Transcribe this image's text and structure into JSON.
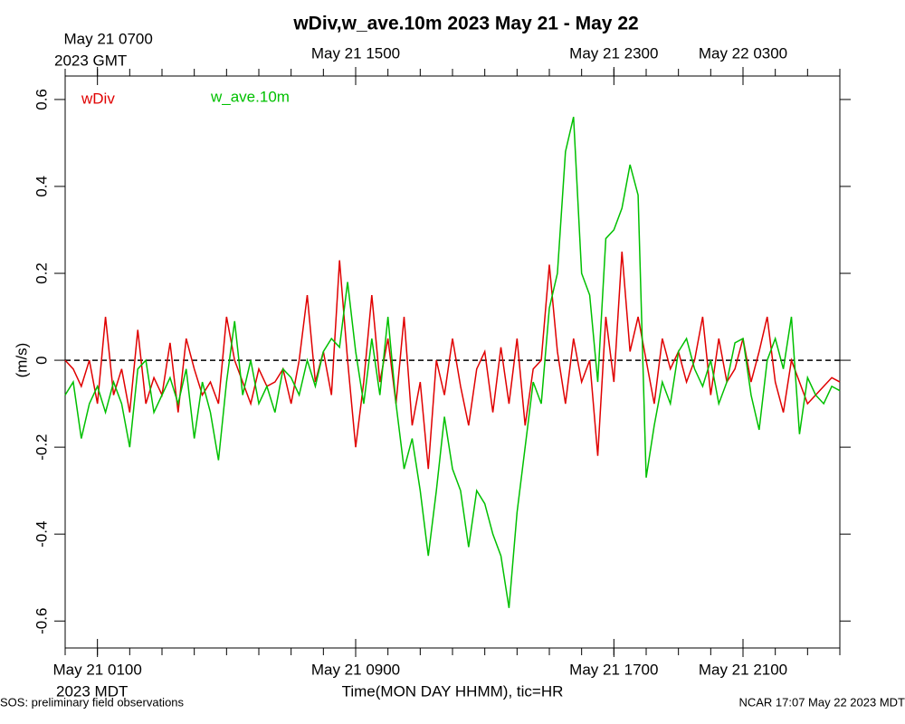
{
  "chart_data": {
    "type": "line",
    "title": "wDiv,w_ave.10m 2023 May 21 - May 22",
    "y_label": "(m/s)",
    "x_label": "Time(MON DAY HHMM), tic=HR",
    "bottom_zone": "2023 MDT",
    "top_zone": "2023 GMT",
    "footer_left": "SOS: preliminary field observations",
    "footer_right": "NCAR 17:07 May 22 2023 MDT",
    "xlim": [
      0,
      1440
    ],
    "ylim": [
      -0.662,
      0.654
    ],
    "yticks": [
      -0.6,
      -0.4,
      -0.2,
      0,
      0.2,
      0.4,
      0.6
    ],
    "xticks": [
      {
        "value": 60,
        "label": "May 21 0100"
      },
      {
        "value": 540,
        "label": "May 21 0900"
      },
      {
        "value": 1020,
        "label": "May 21 1700"
      },
      {
        "value": 1260,
        "label": "May 21 2100"
      }
    ],
    "top_xticks": [
      {
        "value": 60,
        "label": "May 21 0700"
      },
      {
        "value": 540,
        "label": "May 21 1500"
      },
      {
        "value": 1020,
        "label": "May 21 2300"
      },
      {
        "value": 1260,
        "label": "May 22 0300"
      }
    ],
    "xminorticks": [
      0,
      60,
      120,
      180,
      240,
      300,
      360,
      420,
      480,
      540,
      600,
      660,
      720,
      780,
      840,
      900,
      960,
      1020,
      1080,
      1140,
      1200,
      1260,
      1320,
      1380,
      1440
    ],
    "hline": 0,
    "x": [
      0,
      15,
      30,
      45,
      60,
      75,
      90,
      105,
      120,
      135,
      150,
      165,
      180,
      195,
      210,
      225,
      240,
      255,
      270,
      285,
      300,
      315,
      330,
      345,
      360,
      375,
      390,
      405,
      420,
      435,
      450,
      465,
      480,
      495,
      510,
      525,
      540,
      555,
      570,
      585,
      600,
      615,
      630,
      645,
      660,
      675,
      690,
      705,
      720,
      735,
      750,
      765,
      780,
      795,
      810,
      825,
      840,
      855,
      870,
      885,
      900,
      915,
      930,
      945,
      960,
      975,
      990,
      1005,
      1020,
      1035,
      1050,
      1065,
      1080,
      1095,
      1110,
      1125,
      1140,
      1155,
      1170,
      1185,
      1200,
      1215,
      1230,
      1245,
      1260,
      1275,
      1290,
      1305,
      1320,
      1335,
      1350,
      1365,
      1380,
      1395,
      1410,
      1425,
      1440
    ],
    "series": [
      {
        "name": "wDiv",
        "color": "#e00000",
        "values": [
          0.0,
          -0.02,
          -0.06,
          0.0,
          -0.1,
          0.1,
          -0.08,
          -0.02,
          -0.12,
          0.07,
          -0.1,
          -0.04,
          -0.08,
          0.04,
          -0.12,
          0.05,
          -0.02,
          -0.08,
          -0.05,
          -0.1,
          0.1,
          0.0,
          -0.05,
          -0.1,
          -0.02,
          -0.06,
          -0.05,
          -0.02,
          -0.1,
          0.0,
          0.15,
          -0.05,
          0.02,
          -0.08,
          0.23,
          0.0,
          -0.2,
          -0.05,
          0.15,
          -0.05,
          0.05,
          -0.1,
          0.1,
          -0.15,
          -0.05,
          -0.25,
          0.0,
          -0.08,
          0.05,
          -0.06,
          -0.15,
          -0.02,
          0.02,
          -0.12,
          0.03,
          -0.1,
          0.05,
          -0.15,
          -0.02,
          0.0,
          0.22,
          0.02,
          -0.1,
          0.05,
          -0.05,
          0.0,
          -0.22,
          0.1,
          -0.05,
          0.25,
          0.02,
          0.1,
          0.0,
          -0.1,
          0.05,
          -0.02,
          0.02,
          -0.05,
          0.0,
          0.1,
          -0.08,
          0.05,
          -0.05,
          -0.02,
          0.05,
          -0.05,
          0.02,
          0.1,
          -0.05,
          -0.12,
          0.0,
          -0.05,
          -0.1,
          -0.08,
          -0.06,
          -0.04,
          -0.05
        ]
      },
      {
        "name": "w_ave.10m",
        "color": "#00c000",
        "values": [
          -0.08,
          -0.05,
          -0.18,
          -0.1,
          -0.06,
          -0.12,
          -0.05,
          -0.1,
          -0.2,
          -0.02,
          0.0,
          -0.12,
          -0.08,
          -0.04,
          -0.1,
          -0.02,
          -0.18,
          -0.05,
          -0.12,
          -0.23,
          -0.05,
          0.09,
          -0.08,
          0.0,
          -0.1,
          -0.06,
          -0.12,
          -0.02,
          -0.04,
          -0.08,
          0.0,
          -0.06,
          0.02,
          0.05,
          0.03,
          0.18,
          0.02,
          -0.1,
          0.05,
          -0.08,
          0.1,
          -0.1,
          -0.25,
          -0.18,
          -0.3,
          -0.45,
          -0.3,
          -0.13,
          -0.25,
          -0.3,
          -0.43,
          -0.3,
          -0.33,
          -0.4,
          -0.45,
          -0.57,
          -0.35,
          -0.2,
          -0.05,
          -0.1,
          0.12,
          0.2,
          0.48,
          0.56,
          0.2,
          0.15,
          -0.05,
          0.28,
          0.3,
          0.35,
          0.45,
          0.38,
          -0.27,
          -0.15,
          -0.05,
          -0.1,
          0.02,
          0.05,
          -0.02,
          -0.06,
          0.0,
          -0.1,
          -0.05,
          0.04,
          0.05,
          -0.08,
          -0.16,
          0.0,
          0.05,
          -0.02,
          0.1,
          -0.17,
          -0.04,
          -0.08,
          -0.1,
          -0.06,
          -0.07
        ]
      }
    ]
  }
}
